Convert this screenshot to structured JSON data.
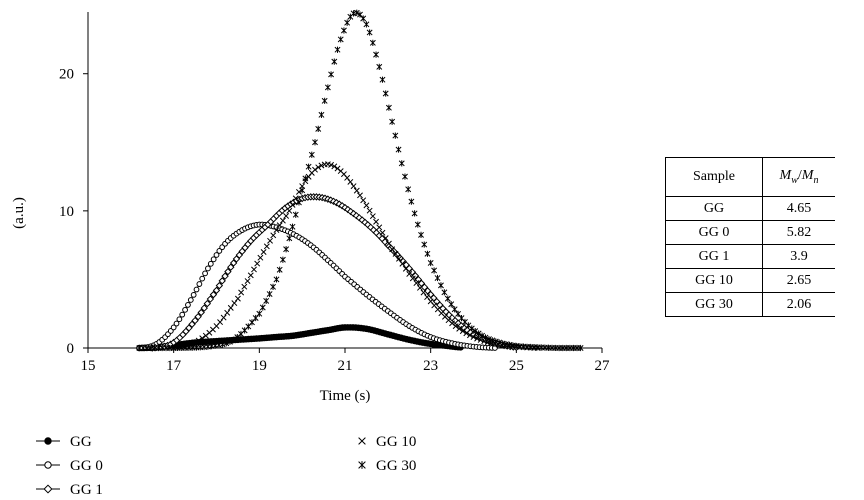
{
  "chart_data": {
    "type": "scatter",
    "title": "",
    "xlabel": "Time (s)",
    "ylabel": "(a.u.)",
    "xlim": [
      15,
      27
    ],
    "ylim": [
      0,
      24.5
    ],
    "xticks": [
      15,
      17,
      19,
      21,
      23,
      25,
      27
    ],
    "yticks": [
      0,
      10,
      20
    ],
    "grid": false,
    "legend_position": "bottom-left",
    "series": [
      {
        "name": "GG",
        "marker": "filled-circle",
        "line": true,
        "x": [
          16.2,
          16.6,
          17.0,
          17.5,
          18.0,
          18.5,
          19.0,
          19.4,
          19.8,
          20.2,
          20.6,
          21.0,
          21.5,
          22.0,
          22.5,
          23.0,
          23.4,
          23.7
        ],
        "y": [
          0.0,
          0.05,
          0.2,
          0.4,
          0.5,
          0.6,
          0.7,
          0.8,
          0.9,
          1.1,
          1.3,
          1.5,
          1.4,
          1.0,
          0.6,
          0.3,
          0.15,
          0.05
        ]
      },
      {
        "name": "GG 0",
        "marker": "open-circle",
        "line": true,
        "x": [
          16.2,
          16.6,
          17.0,
          17.4,
          17.8,
          18.2,
          18.6,
          19.0,
          19.4,
          19.8,
          20.2,
          20.6,
          21.0,
          21.5,
          22.0,
          22.5,
          23.0,
          23.5,
          24.0,
          24.5
        ],
        "y": [
          0.0,
          0.3,
          1.5,
          3.5,
          5.8,
          7.6,
          8.6,
          9.0,
          8.8,
          8.3,
          7.5,
          6.4,
          5.2,
          3.9,
          2.7,
          1.6,
          0.8,
          0.35,
          0.1,
          0.0
        ]
      },
      {
        "name": "GG 1",
        "marker": "open-diamond",
        "line": true,
        "x": [
          16.5,
          17.0,
          17.5,
          18.0,
          18.4,
          18.8,
          19.2,
          19.6,
          20.0,
          20.4,
          20.8,
          21.2,
          21.6,
          22.0,
          22.5,
          23.0,
          23.5,
          24.0,
          24.5,
          25.0
        ],
        "y": [
          0.0,
          0.4,
          2.0,
          4.2,
          6.2,
          7.8,
          9.0,
          10.2,
          10.9,
          11.0,
          10.6,
          9.8,
          8.8,
          7.5,
          5.8,
          3.9,
          2.2,
          1.0,
          0.35,
          0.05
        ]
      },
      {
        "name": "GG 10",
        "marker": "x",
        "line": false,
        "x": [
          17.0,
          17.5,
          18.0,
          18.5,
          18.8,
          19.1,
          19.4,
          19.7,
          20.0,
          20.3,
          20.6,
          20.9,
          21.2,
          21.5,
          21.8,
          22.1,
          22.5,
          23.0,
          23.5,
          24.0,
          24.5,
          25.0,
          25.5
        ],
        "y": [
          0.0,
          0.4,
          1.6,
          3.6,
          5.3,
          7.0,
          8.6,
          10.0,
          11.8,
          13.0,
          13.4,
          12.9,
          11.8,
          10.4,
          8.8,
          7.2,
          5.4,
          3.4,
          1.8,
          0.8,
          0.3,
          0.1,
          0.0
        ]
      },
      {
        "name": "GG 30",
        "marker": "asterisk",
        "line": false,
        "x": [
          16.2,
          17.0,
          17.8,
          18.4,
          19.0,
          19.4,
          19.7,
          20.0,
          20.3,
          20.6,
          20.9,
          21.2,
          21.5,
          21.8,
          22.1,
          22.4,
          22.7,
          23.0,
          23.4,
          23.8,
          24.2,
          24.6,
          25.0,
          25.5,
          26.0,
          26.5
        ],
        "y": [
          0.0,
          0.0,
          0.1,
          0.6,
          2.5,
          5.0,
          8.0,
          11.5,
          15.0,
          19.0,
          22.5,
          24.4,
          23.6,
          20.5,
          16.5,
          12.5,
          9.0,
          6.2,
          3.6,
          1.9,
          0.9,
          0.4,
          0.15,
          0.05,
          0.0,
          0.0
        ]
      }
    ]
  },
  "table": {
    "header_sample": "Sample",
    "header_ratio_num": "M",
    "header_ratio_num_sub": "w",
    "header_ratio_sep": "/",
    "header_ratio_den": "M",
    "header_ratio_den_sub": "n",
    "rows": [
      {
        "sample": "GG",
        "ratio": "4.65"
      },
      {
        "sample": "GG 0",
        "ratio": "5.82"
      },
      {
        "sample": "GG 1",
        "ratio": "3.9"
      },
      {
        "sample": "GG 10",
        "ratio": "2.65"
      },
      {
        "sample": "GG 30",
        "ratio": "2.06"
      }
    ]
  }
}
